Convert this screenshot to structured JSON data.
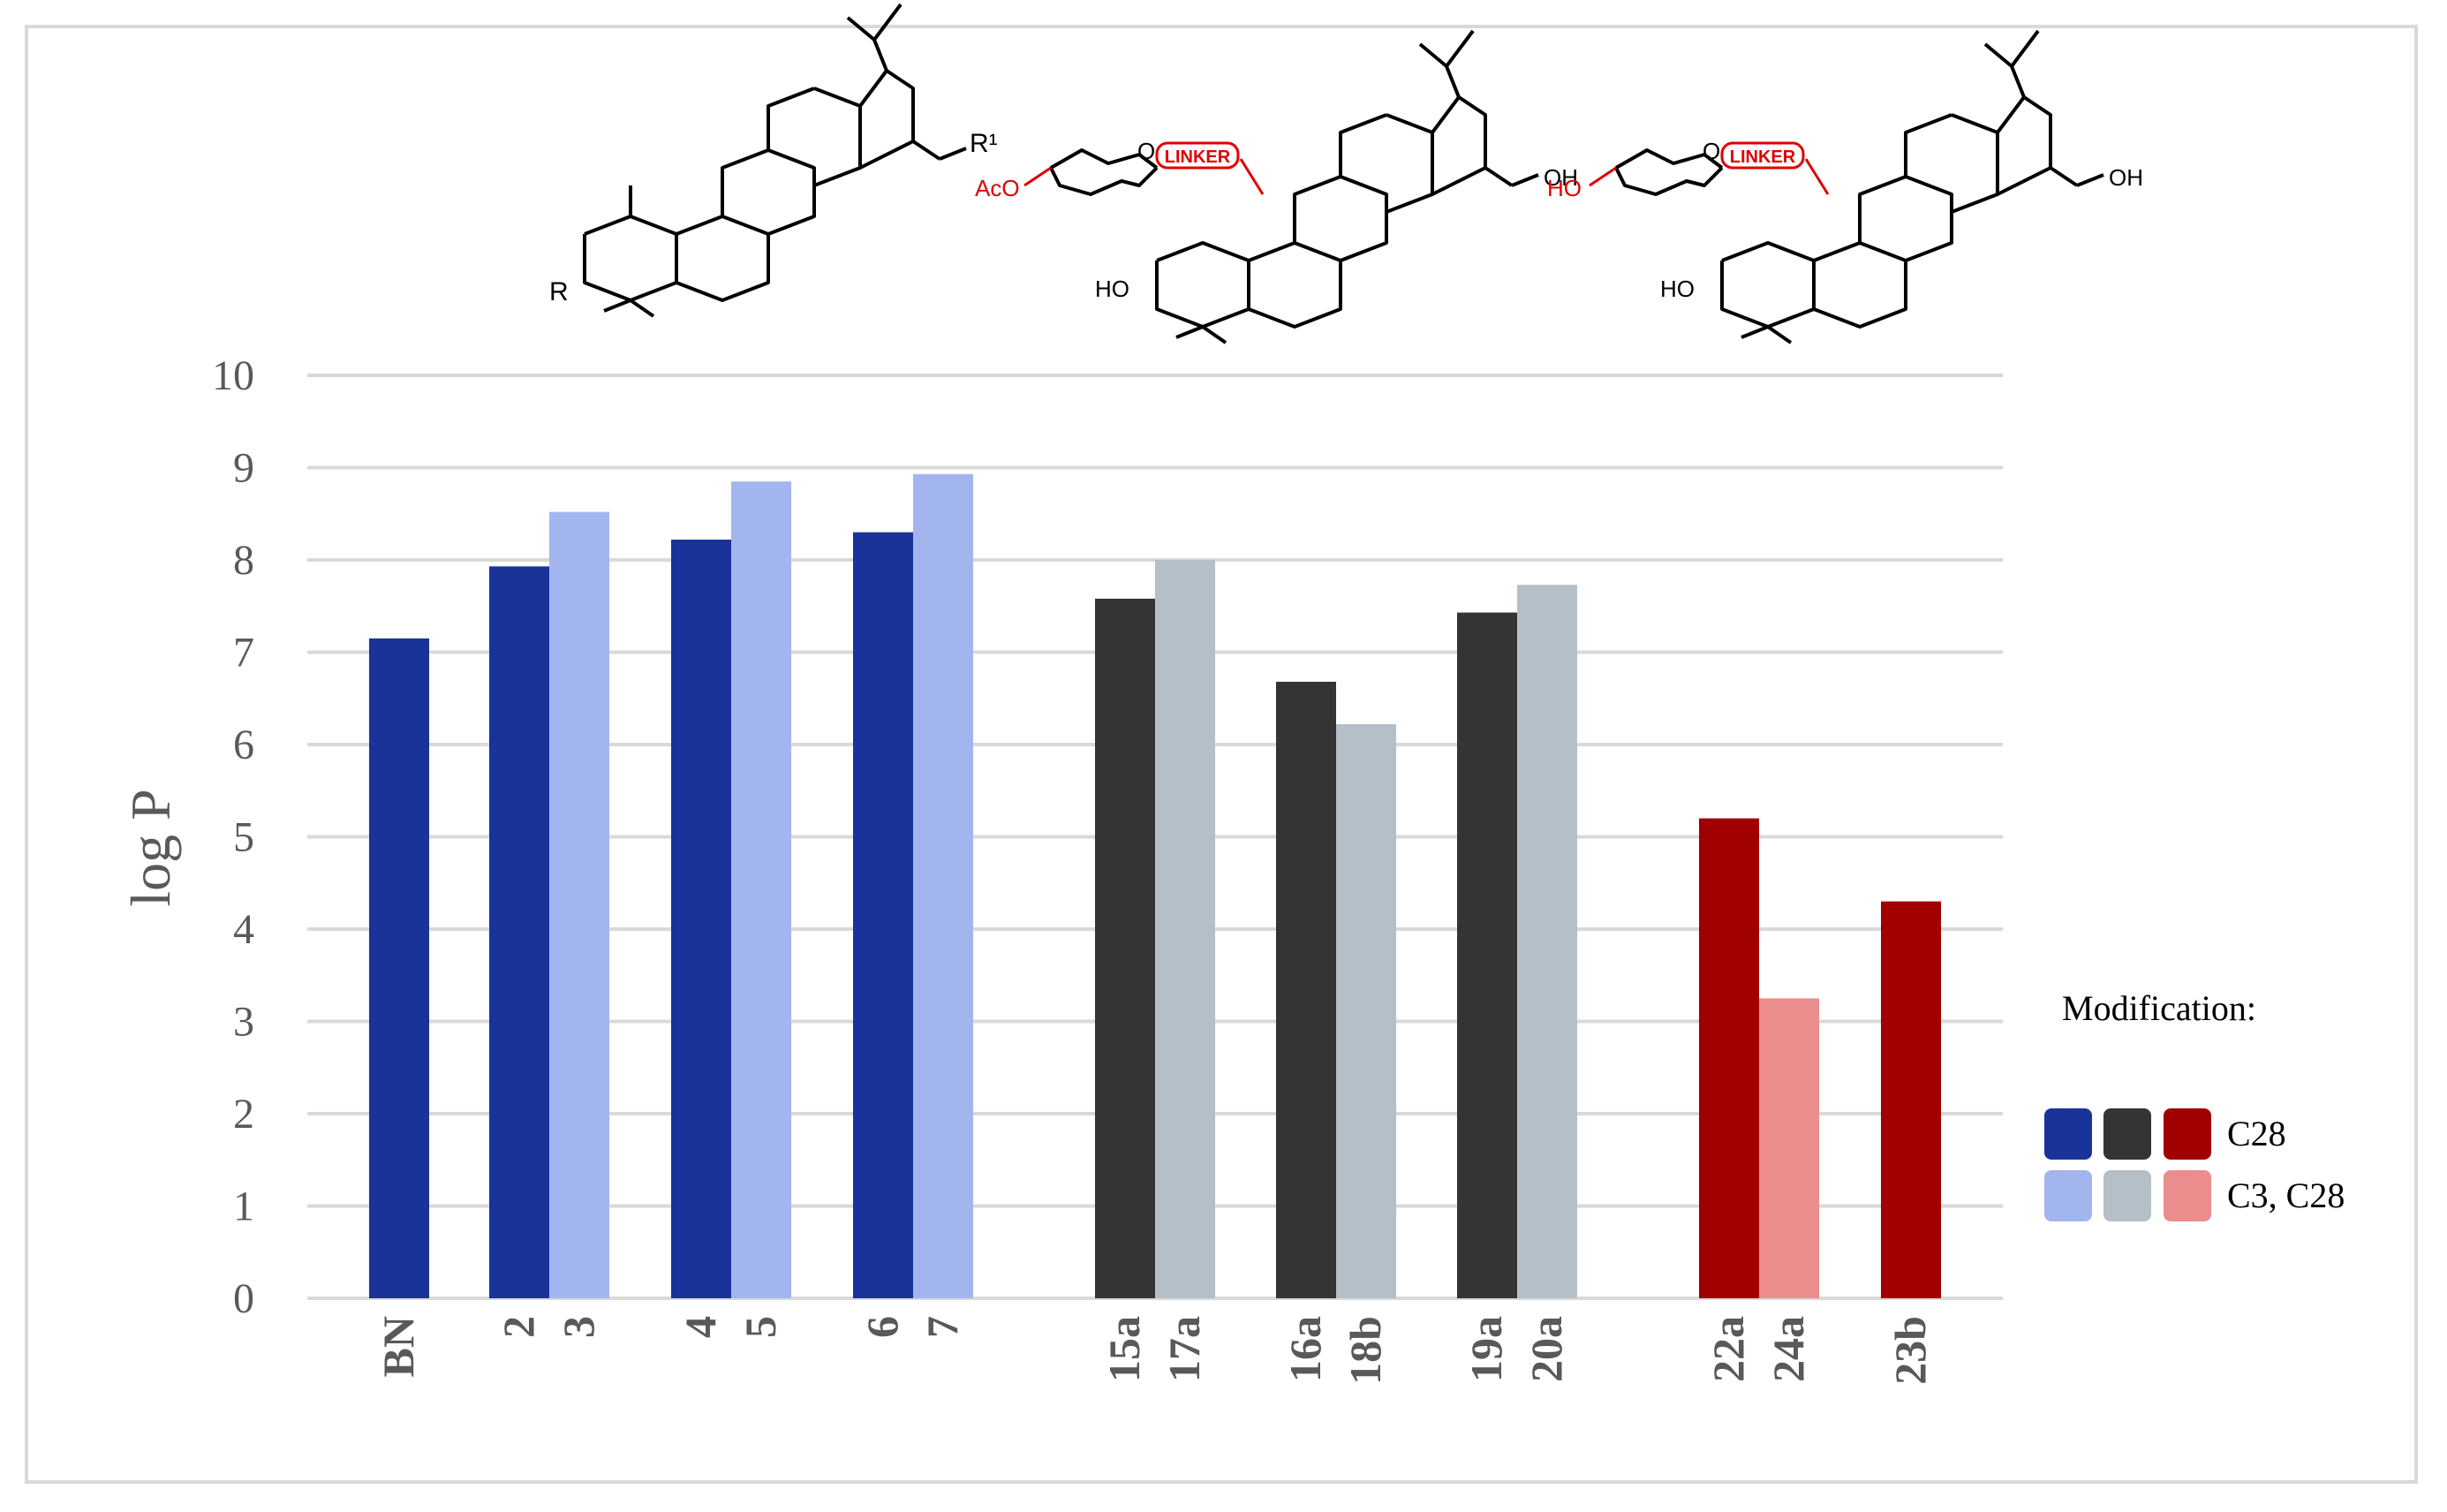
{
  "chart_data": {
    "type": "bar",
    "title": "",
    "xlabel": "",
    "ylabel": "log P",
    "ylim": [
      0,
      10
    ],
    "yticks": [
      0,
      1,
      2,
      3,
      4,
      5,
      6,
      7,
      8,
      9,
      10
    ],
    "grid": true,
    "legend_position": "right",
    "bars": [
      {
        "label": "BN",
        "value": 7.15,
        "color": "#1a339b"
      },
      {
        "label": "2",
        "value": 7.93,
        "color": "#1a339b"
      },
      {
        "label": "3",
        "value": 8.52,
        "color": "#a3b5ee"
      },
      {
        "label": "4",
        "value": 8.22,
        "color": "#1a339b"
      },
      {
        "label": "5",
        "value": 8.85,
        "color": "#a3b5ee"
      },
      {
        "label": "6",
        "value": 8.3,
        "color": "#1a339b"
      },
      {
        "label": "7",
        "value": 8.93,
        "color": "#a3b5ee"
      },
      {
        "label": "15a",
        "value": 7.58,
        "color": "#343434"
      },
      {
        "label": "17a",
        "value": 8.0,
        "color": "#b4bfc7"
      },
      {
        "label": "16a",
        "value": 6.68,
        "color": "#343434"
      },
      {
        "label": "18b",
        "value": 6.22,
        "color": "#b4bfc7"
      },
      {
        "label": "19a",
        "value": 7.43,
        "color": "#343434"
      },
      {
        "label": "20a",
        "value": 7.73,
        "color": "#b4bfc7"
      },
      {
        "label": "22a",
        "value": 5.2,
        "color": "#a00000"
      },
      {
        "label": "24a",
        "value": 3.25,
        "color": "#eb8d8c"
      },
      {
        "label": "23b",
        "value": 4.3,
        "color": "#a00000"
      }
    ],
    "legend": {
      "title": "Modification:",
      "entries": [
        {
          "label": "C28",
          "colors": [
            "#1a339b",
            "#343434",
            "#a00000"
          ]
        },
        {
          "label": "C3, C28",
          "colors": [
            "#a3b5ee",
            "#b4bfc7",
            "#eb8d8c"
          ]
        }
      ]
    }
  },
  "structures": {
    "s1": {
      "r": "R",
      "r1": "R¹"
    },
    "s2": {
      "substituent": "AcO",
      "linker": "LINKER",
      "ho": "HO",
      "oh": "OH",
      "ring_o": "O"
    },
    "s3": {
      "substituent": "HO",
      "linker": "LINKER",
      "ho": "HO",
      "oh": "OH",
      "ring_o": "O"
    }
  },
  "colors": {
    "grid": "#d9d9d9",
    "axis_text": "#595959",
    "frame": "#d9d9d9",
    "red": "#e00000"
  }
}
